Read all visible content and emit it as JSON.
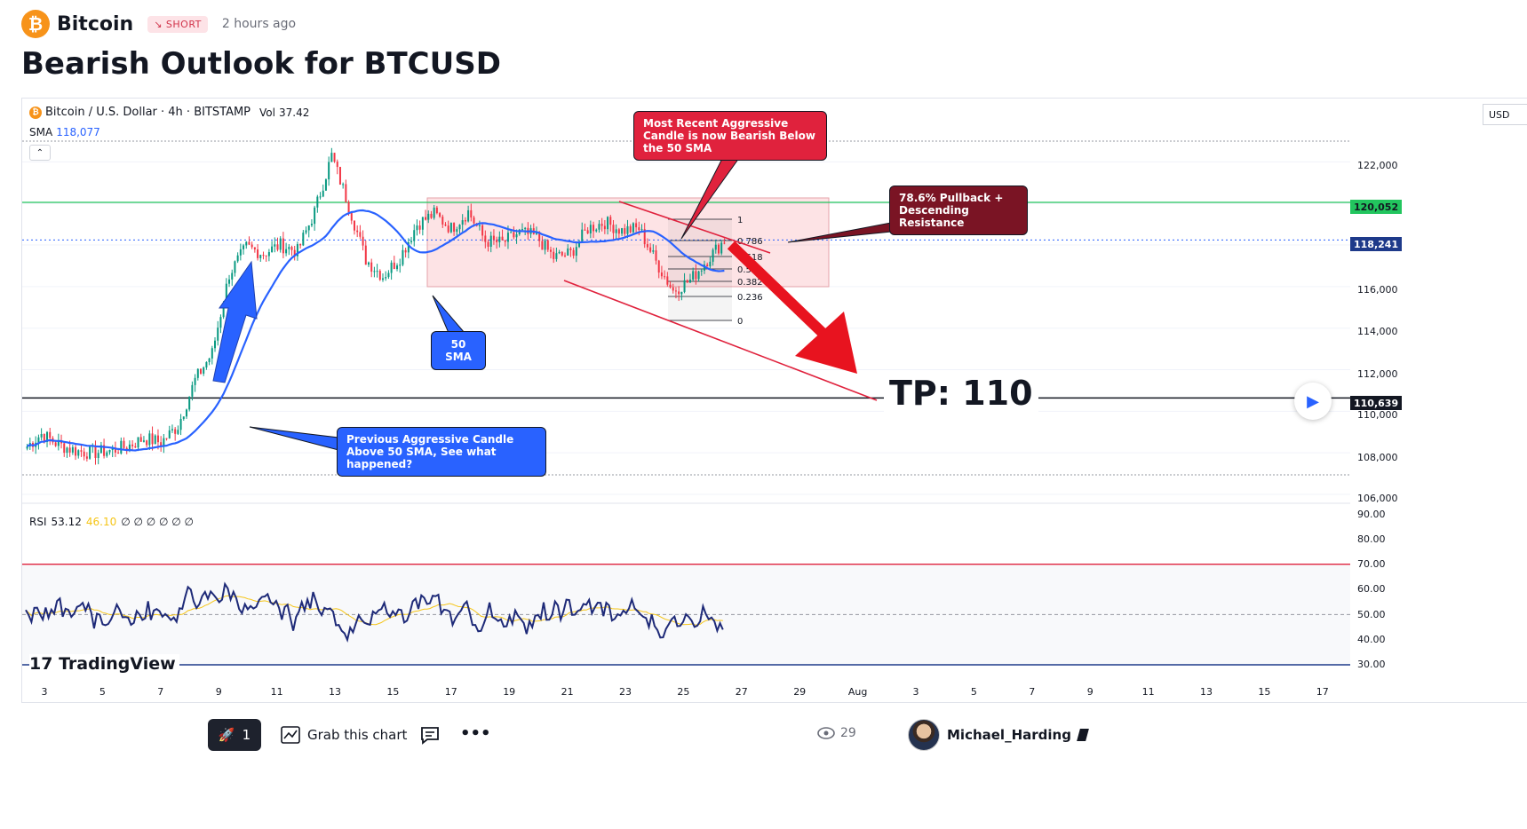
{
  "header": {
    "symbol_name": "Bitcoin",
    "badge": "SHORT",
    "time_ago": "2 hours ago",
    "title": "Bearish Outlook for BTCUSD"
  },
  "chart": {
    "symbol": "Bitcoin / U.S. Dollar · 4h · BITSTAMP",
    "vol_label": "Vol",
    "vol_value": "37.42",
    "sma_label": "SMA",
    "sma_value": "118,077",
    "currency": "USD",
    "rsi_label": "RSI",
    "rsi_value": "53.12",
    "rsi_ma_value": "46.10",
    "rsi_extra": "∅ ∅ ∅ ∅ ∅ ∅",
    "branding": "TradingView",
    "price_ticks": [
      "122,000",
      "120,000",
      "116,000",
      "114,000",
      "112,000",
      "110,000",
      "108,000",
      "106,000"
    ],
    "price_flags": {
      "green_level": "120,052",
      "current": "118,241",
      "tp_level": "110,639"
    },
    "rsi_ticks": [
      "90.00",
      "80.00",
      "70.00",
      "60.00",
      "50.00",
      "40.00",
      "30.00"
    ],
    "time_ticks": [
      "3",
      "5",
      "7",
      "9",
      "11",
      "13",
      "15",
      "17",
      "19",
      "21",
      "23",
      "25",
      "27",
      "29",
      "Aug",
      "3",
      "5",
      "7",
      "9",
      "11",
      "13",
      "15",
      "17"
    ],
    "fib_levels": [
      "1",
      "0.786",
      "0.618",
      "0.5",
      "0.382",
      "0.236",
      "0"
    ],
    "annotations": {
      "recent_candle": "Most Recent Aggressive Candle is now Bearish Below the 50 SMA",
      "pullback": "78.6% Pullback + Descending Resistance",
      "sma_note": "50 SMA",
      "previous_candle": "Previous Aggressive Candle Above 50 SMA, See what happened?",
      "tp": "TP:  110"
    },
    "colors": {
      "up": "#089981",
      "down": "#f23645",
      "sma": "#2962ff",
      "resistance": "#22c55e",
      "annotation_red": "#e0223d",
      "annotation_dark": "#7a1424"
    }
  },
  "chart_data": {
    "type": "candlestick",
    "price_ylim": [
      106000,
      123000
    ],
    "rsi_ylim": [
      30,
      90
    ],
    "levels": {
      "resistance": 120052,
      "current": 118241,
      "take_profit": 110639
    },
    "close_path": [
      108200,
      108900,
      108400,
      108100,
      108000,
      108100,
      108300,
      108700,
      108500,
      109300,
      111500,
      112800,
      116600,
      117900,
      117600,
      118000,
      117700,
      119600,
      122300,
      119900,
      117300,
      116500,
      117400,
      119000,
      119500,
      118800,
      119600,
      118200,
      118100,
      118600,
      118400,
      117400,
      117600,
      118800,
      119100,
      118700,
      118800,
      117200,
      115800,
      116300,
      117300,
      118241
    ]
  },
  "footer": {
    "boost_count": "1",
    "grab_label": "Grab this chart",
    "views": "29",
    "author": "Michael_Harding"
  }
}
